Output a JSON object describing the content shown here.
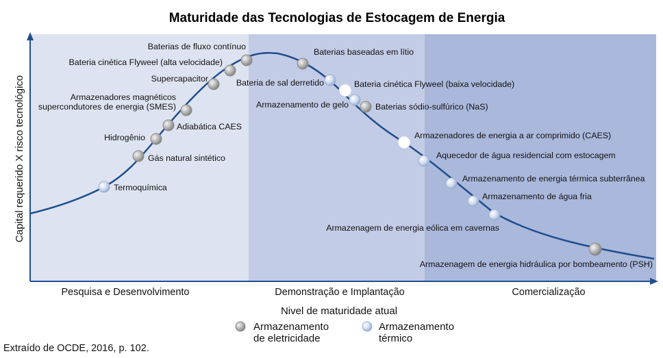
{
  "title": "Maturidade das Tecnologias de Estocagem de Energia",
  "y_axis_label": "Capital requerido X risco tecnológico",
  "x_axis_label": "Nivel de maturidade atual",
  "phases": [
    {
      "label": "Pesquisa e Desenvolvimento",
      "color": "#dde3f0"
    },
    {
      "label": "Demonstração e Implantação",
      "color": "#c3cce6"
    },
    {
      "label": "Comercialização",
      "color": "#a9b8db"
    }
  ],
  "legend": [
    {
      "type": "electricity",
      "label_line1": "Armazenamento",
      "label_line2": "de eletricidade"
    },
    {
      "type": "thermal",
      "label_line1": "Armazenamento",
      "label_line2": "térmico"
    }
  ],
  "source": "Extraído de OCDE, 2016, p. 102.",
  "colors": {
    "curve": "#1f4e8c",
    "axis": "#1f4e8c",
    "electricity_marker": "#a8a8a8",
    "thermal_marker": "#c6d4ec",
    "highlight_marker": "#ffffff"
  },
  "technologies": [
    {
      "label": "Termoquímica",
      "type": "thermal"
    },
    {
      "label": "Gás natural sintético",
      "type": "electricity"
    },
    {
      "label": "Hidrogênio",
      "type": "electricity"
    },
    {
      "label": "Adiabática CAES",
      "type": "electricity"
    },
    {
      "label_lines": [
        "Armazenadores magnéticos",
        "supercondutores de energia (SMES)"
      ],
      "type": "electricity"
    },
    {
      "label": "Supercapacitor",
      "type": "electricity"
    },
    {
      "label": "Bateria cinética Flyweel (alta velocidade)",
      "type": "electricity"
    },
    {
      "label": "Baterias de fluxo contínuo",
      "type": "electricity"
    },
    {
      "label": "Baterias baseadas em lítio",
      "type": "electricity"
    },
    {
      "label": "Bateria de sal derretido",
      "type": "thermal"
    },
    {
      "label": "Bateria cinética Flyweel (baixa velocidade)",
      "type": "highlight"
    },
    {
      "label": "Armazenamento de gelo",
      "type": "thermal"
    },
    {
      "label": "Baterias sódio-sulfúrico (NaS)",
      "type": "electricity"
    },
    {
      "label": "Armazenadores de energia a ar comprimido (CAES)",
      "type": "highlight"
    },
    {
      "label": "Aquecedor de água residencial com estocagem",
      "type": "thermal"
    },
    {
      "label": "Armazenamento de energia térmica subterrânea",
      "type": "thermal"
    },
    {
      "label": "Armazenamento de água fria",
      "type": "thermal"
    },
    {
      "label": "Armazenagem de energia eólica em cavernas",
      "type": "thermal"
    },
    {
      "label": "Armazenagem de energia hidráulica por bombeamento (PSH)",
      "type": "electricity"
    }
  ]
}
